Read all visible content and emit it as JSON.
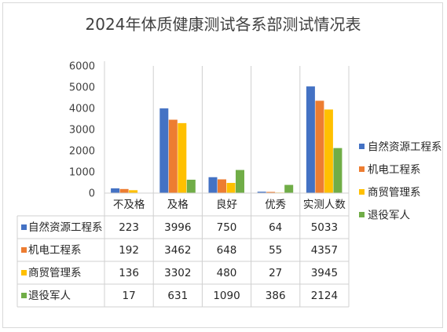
{
  "chart_data": {
    "type": "bar",
    "title": "2024年体质健康测试各系部测试情况表",
    "categories": [
      "不及格",
      "及格",
      "良好",
      "优秀",
      "实测人数"
    ],
    "ylim": [
      0,
      6000
    ],
    "yticks": [
      0,
      1000,
      2000,
      3000,
      4000,
      5000,
      6000
    ],
    "grid": false,
    "legend_position": "right",
    "data_table": true,
    "series": [
      {
        "name": "自然资源工程系",
        "color": "#4472C4",
        "values": [
          223,
          3996,
          750,
          64,
          5033
        ]
      },
      {
        "name": "机电工程系",
        "color": "#ED7D31",
        "values": [
          192,
          3462,
          648,
          55,
          4357
        ]
      },
      {
        "name": "商贸管理系",
        "color": "#FFC000",
        "values": [
          136,
          3302,
          480,
          27,
          3945
        ]
      },
      {
        "name": "退役军人",
        "color": "#70AD47",
        "values": [
          17,
          631,
          1090,
          386,
          2124
        ]
      }
    ]
  }
}
